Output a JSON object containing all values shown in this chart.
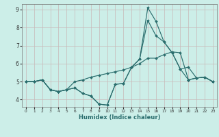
{
  "xlabel": "Humidex (Indice chaleur)",
  "bg_color": "#cceee8",
  "grid_color": "#c8b8b8",
  "line_color": "#2b6e6e",
  "xlim_min": -0.5,
  "xlim_max": 23.5,
  "ylim_min": 3.6,
  "ylim_max": 9.3,
  "yticks": [
    4,
    5,
    6,
    7,
    8,
    9
  ],
  "xticks": [
    0,
    1,
    2,
    3,
    4,
    5,
    6,
    7,
    8,
    9,
    10,
    11,
    12,
    13,
    14,
    15,
    16,
    17,
    18,
    19,
    20,
    21,
    22,
    23
  ],
  "line1_x": [
    0,
    1,
    2,
    3,
    4,
    5,
    6,
    7,
    8,
    9,
    10,
    11,
    12,
    13,
    14,
    15,
    16,
    17,
    18,
    19,
    20,
    21,
    22,
    23
  ],
  "line1_y": [
    5.0,
    5.0,
    5.1,
    4.55,
    4.45,
    4.55,
    4.65,
    4.35,
    4.2,
    3.75,
    3.7,
    4.85,
    4.9,
    5.8,
    6.25,
    9.1,
    8.35,
    7.2,
    6.6,
    5.7,
    5.1,
    5.2,
    5.25,
    5.0
  ],
  "line2_x": [
    0,
    1,
    2,
    3,
    4,
    5,
    6,
    7,
    8,
    9,
    10,
    11,
    12,
    13,
    14,
    15,
    16,
    17,
    18,
    19,
    20,
    21,
    22,
    23
  ],
  "line2_y": [
    5.0,
    5.0,
    5.1,
    4.55,
    4.45,
    4.55,
    5.0,
    5.1,
    5.25,
    5.35,
    5.45,
    5.55,
    5.65,
    5.8,
    6.0,
    6.3,
    6.3,
    6.5,
    6.65,
    6.6,
    5.1,
    5.2,
    5.25,
    5.0
  ],
  "line3_x": [
    0,
    1,
    2,
    3,
    4,
    5,
    6,
    7,
    8,
    9,
    10,
    11,
    12,
    13,
    14,
    15,
    16,
    17,
    18,
    19,
    20,
    21,
    22,
    23
  ],
  "line3_y": [
    5.0,
    5.0,
    5.1,
    4.55,
    4.45,
    4.55,
    4.65,
    4.35,
    4.2,
    3.75,
    3.7,
    4.85,
    4.9,
    5.8,
    6.25,
    8.4,
    7.55,
    7.2,
    6.6,
    5.7,
    5.8,
    5.2,
    5.25,
    5.0
  ]
}
